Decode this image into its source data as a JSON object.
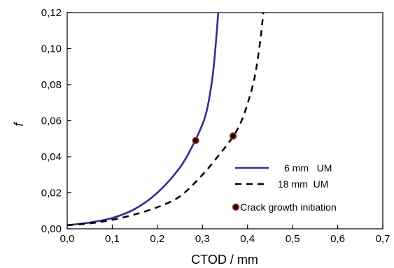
{
  "chart_data": {
    "type": "line",
    "xlabel": "CTOD / mm",
    "ylabel": "f",
    "xlim": [
      0.0,
      0.7
    ],
    "ylim": [
      0.0,
      0.12
    ],
    "xticks": [
      "0,0",
      "0,1",
      "0,2",
      "0,3",
      "0,4",
      "0,5",
      "0,6",
      "0,7"
    ],
    "yticks": [
      "0,00",
      "0,02",
      "0,04",
      "0,06",
      "0,08",
      "0,10",
      "0,12"
    ],
    "grid": false,
    "legend_position": "lower-right",
    "series": [
      {
        "name": "6 mm   UM",
        "style": "solid",
        "color": "#2e3192",
        "x": [
          0.0,
          0.05,
          0.1,
          0.15,
          0.2,
          0.25,
          0.28,
          0.3,
          0.31,
          0.32,
          0.325,
          0.33,
          0.335
        ],
        "y": [
          0.002,
          0.0035,
          0.006,
          0.011,
          0.02,
          0.034,
          0.047,
          0.058,
          0.066,
          0.08,
          0.09,
          0.104,
          0.12
        ]
      },
      {
        "name": "18 mm  UM",
        "style": "dashed",
        "color": "#000000",
        "x": [
          0.0,
          0.05,
          0.1,
          0.15,
          0.2,
          0.25,
          0.3,
          0.34,
          0.37,
          0.39,
          0.41,
          0.42,
          0.43,
          0.435
        ],
        "y": [
          0.002,
          0.003,
          0.005,
          0.008,
          0.012,
          0.018,
          0.03,
          0.042,
          0.052,
          0.062,
          0.078,
          0.09,
          0.108,
          0.12
        ]
      }
    ],
    "markers": {
      "name": "Crack growth initiation",
      "fill": "#111111",
      "stroke": "#c0392b",
      "points": [
        {
          "x": 0.285,
          "y": 0.049
        },
        {
          "x": 0.368,
          "y": 0.0515
        }
      ]
    }
  }
}
